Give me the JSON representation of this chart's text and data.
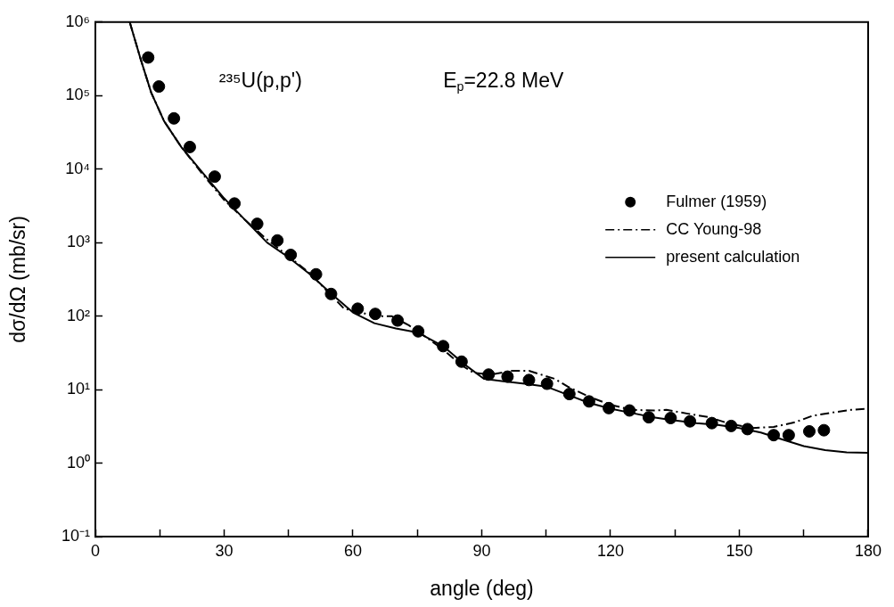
{
  "chart_data": {
    "type": "line",
    "xlabel": "angle (deg)",
    "ylabel": "dσ/dΩ (mb/sr)",
    "annotations": [
      "²³⁵U(p,p')",
      "E$_{p}$=22.8 MeV"
    ],
    "log": "y",
    "grid": false,
    "legend": "right",
    "xlim": [
      0,
      180
    ],
    "xticks": [
      0,
      {
        "value": 15,
        "label": null
      },
      30,
      {
        "value": 45,
        "label": null
      },
      60,
      {
        "value": 75,
        "label": null
      },
      90,
      {
        "value": 105,
        "label": null
      },
      120,
      {
        "value": 135,
        "label": null
      },
      150,
      {
        "value": 165,
        "label": null
      },
      180
    ],
    "ylim": [
      0.1,
      1000000
    ],
    "yticks": [
      {
        "value": 0.1,
        "label": "10⁻¹"
      },
      {
        "value": 1,
        "label": "10⁰"
      },
      {
        "value": 10,
        "label": "10¹"
      },
      {
        "value": 100,
        "label": "10²"
      },
      {
        "value": 1000,
        "label": "10³"
      },
      {
        "value": 10000,
        "label": "10⁴"
      },
      {
        "value": 100000,
        "label": "10⁵"
      },
      {
        "value": 1000000,
        "label": "10⁶"
      }
    ],
    "series": [
      {
        "name": "Fulmer (1959)",
        "type": "scatter",
        "marker": "circle",
        "color": "#000000",
        "x": [
          12.3,
          14.8,
          18.3,
          22.0,
          27.8,
          32.4,
          37.7,
          42.4,
          45.5,
          51.4,
          54.9,
          61.1,
          65.2,
          70.4,
          75.2,
          81.0,
          85.3,
          91.6,
          96.0,
          101.0,
          105.2,
          110.4,
          115.0,
          119.6,
          124.4,
          128.9,
          134.0,
          138.5,
          143.6,
          148.1,
          151.9,
          158.0,
          161.5,
          166.3,
          169.7
        ],
        "values": [
          330000,
          133000,
          49000,
          20000,
          7900,
          3400,
          1800,
          1070,
          680,
          370,
          200,
          126,
          107,
          87,
          62,
          39,
          24,
          16,
          15,
          13.5,
          12,
          8.7,
          6.9,
          5.6,
          5.2,
          4.2,
          4.1,
          3.7,
          3.5,
          3.2,
          2.9,
          2.4,
          2.4,
          2.7,
          2.8
        ]
      },
      {
        "name": "CC Young-98",
        "marker": "none",
        "line_style": "dashed",
        "color": "#000000",
        "x": [
          8,
          10.5,
          13,
          16,
          20,
          25,
          30,
          35,
          40,
          45,
          50,
          55,
          58,
          60,
          65,
          69,
          73,
          77,
          81,
          85,
          88,
          92,
          97,
          101,
          107,
          110,
          115,
          120,
          125,
          130,
          133,
          138,
          143,
          148,
          153,
          158,
          163,
          167,
          172,
          176,
          180
        ],
        "values": [
          1000000,
          320000,
          110000,
          45000,
          20000,
          8500,
          3800,
          2000,
          1100,
          650,
          380,
          190,
          125,
          120,
          100,
          100,
          75,
          52,
          35,
          22,
          17,
          16,
          18,
          18,
          14,
          11,
          8,
          6.2,
          5.3,
          5.2,
          5.3,
          4.7,
          4.2,
          3.4,
          3.0,
          3.1,
          3.6,
          4.4,
          4.9,
          5.3,
          5.5
        ]
      },
      {
        "name": "present calculation",
        "marker": "none",
        "line_style": "solid",
        "color": "#000000",
        "x": [
          8,
          10.5,
          13,
          16,
          20,
          25,
          30,
          35,
          40,
          45,
          50,
          55,
          60,
          65,
          70,
          75,
          81,
          86,
          90.5,
          95,
          100,
          105,
          110,
          115,
          120,
          125,
          130,
          135,
          140,
          145,
          150,
          155,
          160,
          165,
          170,
          175,
          180
        ],
        "values": [
          1000000,
          320000,
          110000,
          45000,
          20000,
          8900,
          4000,
          2000,
          1000,
          630,
          370,
          200,
          112,
          80,
          68,
          60,
          39,
          22,
          14,
          13,
          12,
          11,
          8.5,
          6.6,
          5.5,
          4.8,
          4.2,
          3.8,
          3.5,
          3.3,
          3.0,
          2.6,
          2.1,
          1.7,
          1.5,
          1.4,
          1.38
        ]
      }
    ]
  }
}
